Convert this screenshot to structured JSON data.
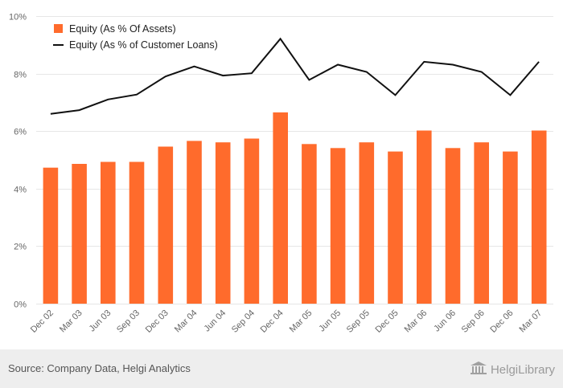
{
  "chart_data": {
    "type": "bar",
    "categories": [
      "Dec 02",
      "Mar 03",
      "Jun 03",
      "Sep 03",
      "Dec 03",
      "Mar 04",
      "Jun 04",
      "Sep 04",
      "Dec 04",
      "Mar 05",
      "Jun 05",
      "Sep 05",
      "Dec 05",
      "Mar 06",
      "Jun 06",
      "Sep 06",
      "Dec 06",
      "Mar 07"
    ],
    "series": [
      {
        "name": "Equity (As % Of Assets)",
        "type": "bar",
        "color": "#ff6b2c",
        "values": [
          4.73,
          4.86,
          4.93,
          4.93,
          5.46,
          5.66,
          5.61,
          5.74,
          6.65,
          5.55,
          5.41,
          5.61,
          5.29,
          6.02,
          5.41,
          5.61,
          5.29,
          6.02
        ]
      },
      {
        "name": "Equity (As % of Customer Loans)",
        "type": "line",
        "color": "#111111",
        "values": [
          6.6,
          6.73,
          7.1,
          7.27,
          7.9,
          8.25,
          7.93,
          8.01,
          9.21,
          7.78,
          8.31,
          8.06,
          7.25,
          8.41,
          8.31,
          8.06,
          7.25,
          8.41
        ]
      }
    ],
    "ylim": [
      0,
      10
    ],
    "yticks": [
      0,
      2,
      4,
      6,
      8,
      10
    ],
    "ytick_labels": [
      "0%",
      "2%",
      "4%",
      "6%",
      "8%",
      "10%"
    ],
    "grid": true,
    "legend_position": "top-left",
    "xlabel": "",
    "ylabel": ""
  },
  "footer": {
    "source": "Source: Company Data, Helgi Analytics",
    "brand": "HelgiLibrary"
  },
  "icons": {
    "brand_icon": "library-building-icon"
  }
}
